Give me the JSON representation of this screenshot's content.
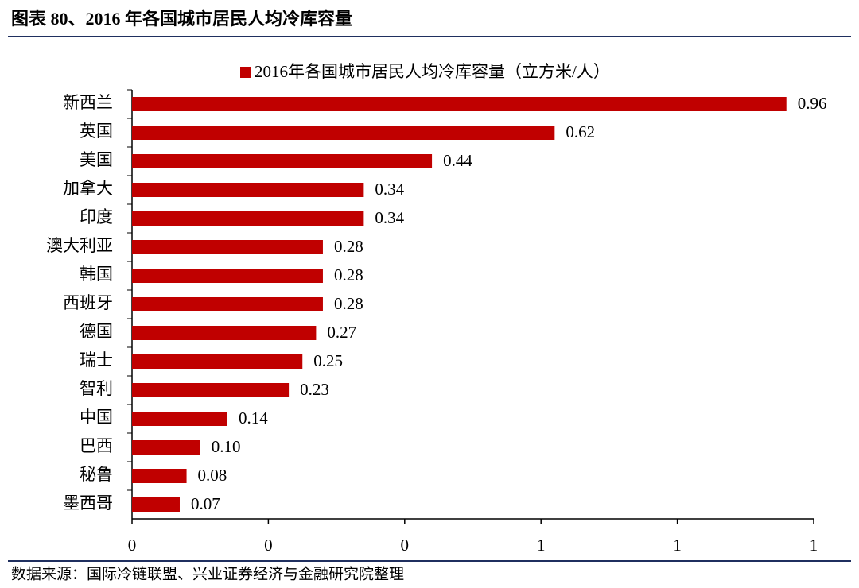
{
  "chart_data": {
    "type": "hbar",
    "title": "图表 80、2016 年各国城市居民人均冷库容量",
    "source": "数据来源：国际冷链联盟、兴业证券经济与金融研究院整理",
    "categories": [
      "新西兰",
      "英国",
      "美国",
      "加拿大",
      "印度",
      "澳大利亚",
      "韩国",
      "西班牙",
      "德国",
      "瑞士",
      "智利",
      "中国",
      "巴西",
      "秘鲁",
      "墨西哥"
    ],
    "series": [
      {
        "name": "2016年各国城市居民人均冷库容量（立方米/人）",
        "color": "#c00000",
        "values": [
          0.96,
          0.62,
          0.44,
          0.34,
          0.34,
          0.28,
          0.28,
          0.28,
          0.27,
          0.25,
          0.23,
          0.14,
          0.1,
          0.08,
          0.07
        ],
        "value_labels": [
          "0.96",
          "0.62",
          "0.44",
          "0.34",
          "0.34",
          "0.28",
          "0.28",
          "0.28",
          "0.27",
          "0.25",
          "0.23",
          "0.14",
          "0.10",
          "0.08",
          "0.07"
        ]
      }
    ],
    "xlim": [
      0,
      1
    ],
    "xticks": [
      0,
      {
        "value": 0.2,
        "label": "0"
      },
      {
        "value": 0.4,
        "label": "0"
      },
      {
        "value": 0.6,
        "label": "1"
      },
      {
        "value": 0.8,
        "label": "1"
      },
      1
    ],
    "grid": false
  }
}
